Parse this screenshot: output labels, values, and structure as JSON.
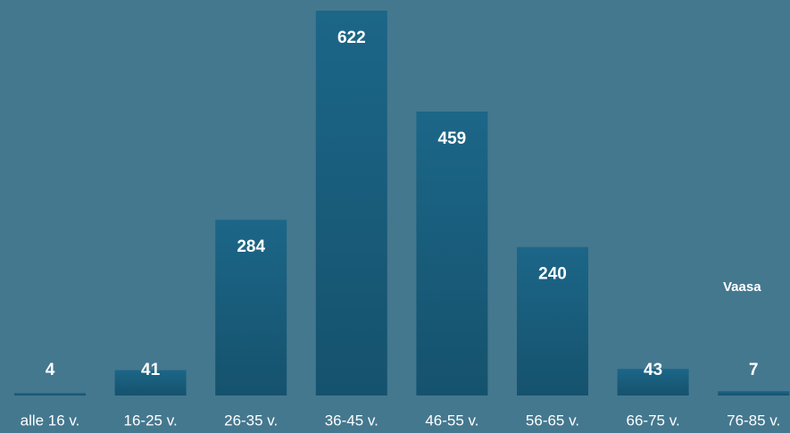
{
  "chart_data": {
    "type": "bar",
    "categories": [
      "alle 16 v.",
      "16-25 v.",
      "26-35 v.",
      "36-45 v.",
      "46-55 v.",
      "56-65 v.",
      "66-75 v.",
      "76-85 v."
    ],
    "values": [
      4,
      41,
      284,
      622,
      459,
      240,
      43,
      7
    ],
    "color": "#1a6080",
    "annotation": "Vaasa"
  }
}
